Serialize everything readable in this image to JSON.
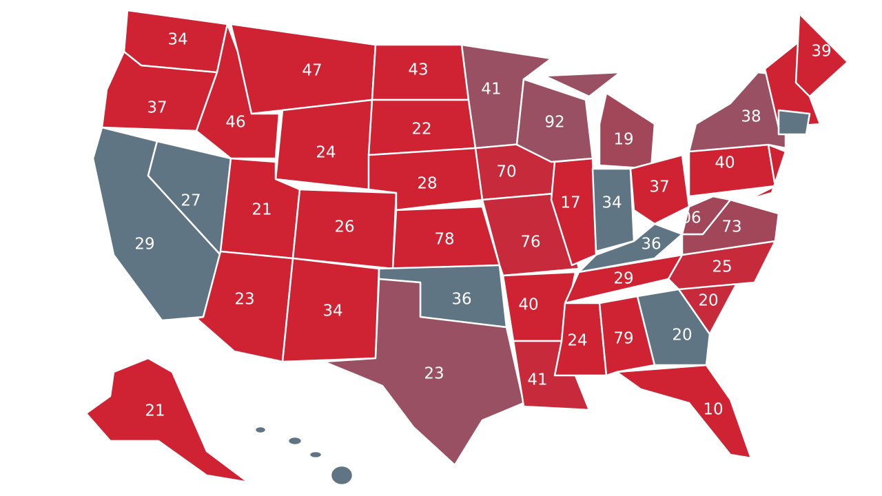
{
  "regions": [
    {
      "label": "34",
      "color": "#cf2232"
    },
    {
      "label": "37",
      "color": "#cf2232"
    },
    {
      "label": "29",
      "color": "#5f7584"
    },
    {
      "label": "27",
      "color": "#5f7584"
    },
    {
      "label": "46",
      "color": "#cf2232"
    },
    {
      "label": "47",
      "color": "#cf2232"
    },
    {
      "label": "24",
      "color": "#cf2232"
    },
    {
      "label": "21",
      "color": "#cf2232"
    },
    {
      "label": "23",
      "color": "#cf2232"
    },
    {
      "label": "26",
      "color": "#cf2232"
    },
    {
      "label": "34",
      "color": "#cf2232"
    },
    {
      "label": "43",
      "color": "#cf2232"
    },
    {
      "label": "22",
      "color": "#cf2232"
    },
    {
      "label": "28",
      "color": "#cf2232"
    },
    {
      "label": "78",
      "color": "#cf2232"
    },
    {
      "label": "36",
      "color": "#5f7584"
    },
    {
      "label": "23",
      "color": "#985062"
    },
    {
      "label": "41",
      "color": "#985062"
    },
    {
      "label": "70",
      "color": "#c72a3a"
    },
    {
      "label": "76",
      "color": "#c72a3a"
    },
    {
      "label": "40",
      "color": "#cf2232"
    },
    {
      "label": "41",
      "color": "#c72a3a"
    },
    {
      "label": "92",
      "color": "#985062"
    },
    {
      "label": "17",
      "color": "#cf2232"
    },
    {
      "label": "19",
      "color": "#a2475a"
    },
    {
      "label": "34",
      "color": "#5f7584"
    },
    {
      "label": "37",
      "color": "#cf2232"
    },
    {
      "label": "36",
      "color": "#5f7584"
    },
    {
      "label": "29",
      "color": "#cf2232"
    },
    {
      "label": "24",
      "color": "#cf2232"
    },
    {
      "label": "79",
      "color": "#cf2232"
    },
    {
      "label": "20",
      "color": "#5f7584"
    },
    {
      "label": "10",
      "color": "#cf2232"
    },
    {
      "label": "20",
      "color": "#c72a3a"
    },
    {
      "label": "25",
      "color": "#c72a3a"
    },
    {
      "label": "73",
      "color": "#a2475a"
    },
    {
      "label": "06",
      "color": "#a2475a"
    },
    {
      "label": "40",
      "color": "#cf2232"
    },
    {
      "label": "38",
      "color": "#985062"
    },
    {
      "label": "39",
      "color": "#cf2232"
    },
    {
      "label": "21",
      "color": "#cf2232"
    }
  ]
}
